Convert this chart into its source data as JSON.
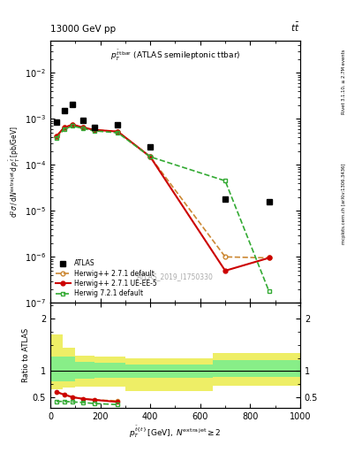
{
  "atlas_x": [
    25,
    55,
    90,
    130,
    175,
    270,
    400,
    700,
    875
  ],
  "atlas_y": [
    0.00085,
    0.0015,
    0.0021,
    0.00095,
    0.00065,
    0.00075,
    0.00025,
    1.8e-05,
    1.6e-05
  ],
  "herwig271_x": [
    25,
    55,
    90,
    130,
    175,
    270,
    400,
    700,
    875
  ],
  "herwig271_y": [
    0.00042,
    0.00065,
    0.00075,
    0.00065,
    0.00058,
    0.00053,
    0.00015,
    1e-06,
    9.5e-07
  ],
  "herwig271ue_x": [
    25,
    55,
    90,
    130,
    175,
    270,
    400,
    700,
    875
  ],
  "herwig271ue_y": [
    0.00042,
    0.00065,
    0.00075,
    0.00065,
    0.00058,
    0.00053,
    0.00015,
    5e-07,
    9.5e-07
  ],
  "herwig721_x": [
    25,
    55,
    90,
    130,
    175,
    270,
    400,
    700,
    875
  ],
  "herwig721_y": [
    0.00038,
    0.0006,
    0.0007,
    0.00062,
    0.00055,
    0.0005,
    0.00015,
    4.5e-05,
    1.8e-07
  ],
  "ratio_x": [
    25,
    55,
    90,
    130,
    175,
    270
  ],
  "ratio_hw271": [
    0.6,
    0.55,
    0.5,
    0.47,
    0.45,
    0.43
  ],
  "ratio_hw271ue": [
    0.6,
    0.55,
    0.5,
    0.47,
    0.45,
    0.41
  ],
  "ratio_hw721": [
    0.42,
    0.42,
    0.41,
    0.4,
    0.38,
    0.36
  ],
  "band_edges": [
    0,
    50,
    100,
    175,
    300,
    650,
    1000
  ],
  "green_upper": [
    1.28,
    1.28,
    1.18,
    1.15,
    1.12,
    1.2
  ],
  "green_lower": [
    0.8,
    0.8,
    0.85,
    0.87,
    0.87,
    0.88
  ],
  "yellow_upper": [
    1.7,
    1.45,
    1.3,
    1.27,
    1.25,
    1.35
  ],
  "yellow_lower": [
    0.65,
    0.68,
    0.7,
    0.7,
    0.62,
    0.72
  ],
  "colors": {
    "atlas": "#000000",
    "herwig271": "#cc8833",
    "herwig271ue": "#cc0000",
    "herwig721": "#33aa33",
    "green_band": "#88ee88",
    "yellow_band": "#eeee66"
  },
  "xlim": [
    0,
    1000
  ],
  "ylim_main": [
    1e-07,
    0.05
  ],
  "ylim_ratio": [
    0.3,
    2.3
  ]
}
